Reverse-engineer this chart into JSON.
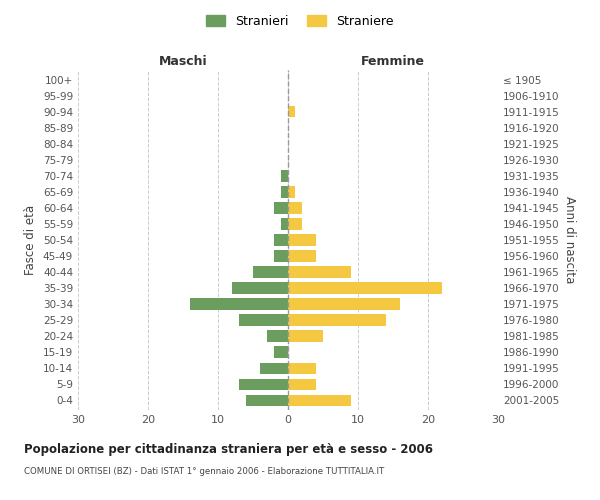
{
  "age_groups": [
    "0-4",
    "5-9",
    "10-14",
    "15-19",
    "20-24",
    "25-29",
    "30-34",
    "35-39",
    "40-44",
    "45-49",
    "50-54",
    "55-59",
    "60-64",
    "65-69",
    "70-74",
    "75-79",
    "80-84",
    "85-89",
    "90-94",
    "95-99",
    "100+"
  ],
  "birth_years": [
    "2001-2005",
    "1996-2000",
    "1991-1995",
    "1986-1990",
    "1981-1985",
    "1976-1980",
    "1971-1975",
    "1966-1970",
    "1961-1965",
    "1956-1960",
    "1951-1955",
    "1946-1950",
    "1941-1945",
    "1936-1940",
    "1931-1935",
    "1926-1930",
    "1921-1925",
    "1916-1920",
    "1911-1915",
    "1906-1910",
    "≤ 1905"
  ],
  "males": [
    6,
    7,
    4,
    2,
    3,
    7,
    14,
    8,
    5,
    2,
    2,
    1,
    2,
    1,
    1,
    0,
    0,
    0,
    0,
    0,
    0
  ],
  "females": [
    9,
    4,
    4,
    0,
    5,
    14,
    16,
    22,
    9,
    4,
    4,
    2,
    2,
    1,
    0,
    0,
    0,
    0,
    1,
    0,
    0
  ],
  "male_color": "#6b9e5e",
  "female_color": "#f5c842",
  "title": "Popolazione per cittadinanza straniera per età e sesso - 2006",
  "subtitle": "COMUNE DI ORTISEI (BZ) - Dati ISTAT 1° gennaio 2006 - Elaborazione TUTTITALIA.IT",
  "xlabel_left": "Maschi",
  "xlabel_right": "Femmine",
  "ylabel_left": "Fasce di età",
  "ylabel_right": "Anni di nascita",
  "xlim": 30,
  "legend_stranieri": "Stranieri",
  "legend_straniere": "Straniere",
  "background_color": "#ffffff",
  "grid_color": "#cccccc"
}
